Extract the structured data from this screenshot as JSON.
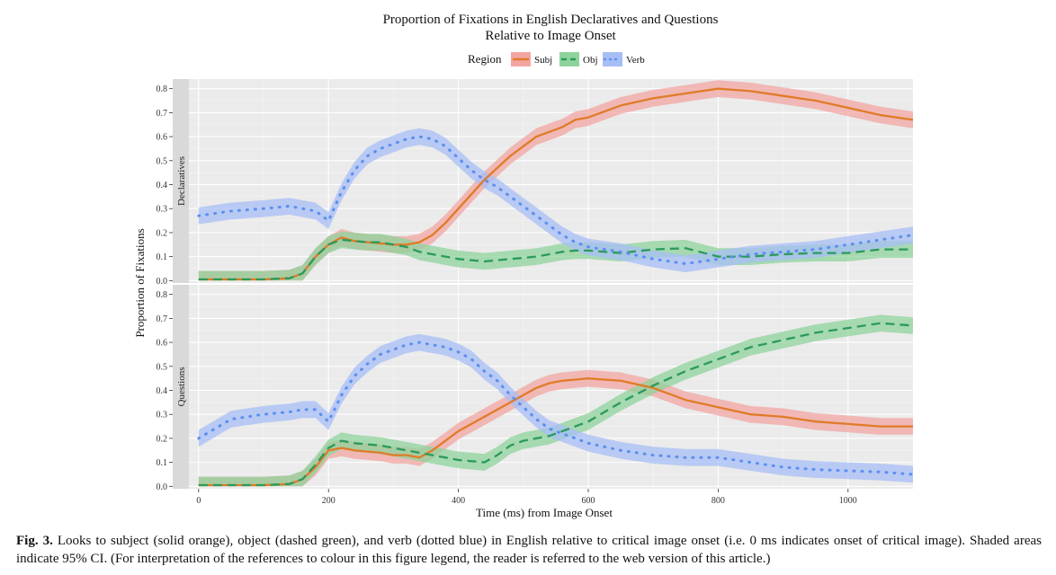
{
  "chart_data": {
    "type": "line",
    "title": "Proportion of Fixations in English Declaratives and Questions",
    "subtitle": "Relative to Image Onset",
    "xlabel": "Time (ms) from Image Onset",
    "ylabel": "Proportion of Fixations",
    "legend": {
      "title": "Region",
      "position": "top",
      "entries": [
        "Subj",
        "Obj",
        "Verb"
      ]
    },
    "xlim": [
      -15,
      1100
    ],
    "ylim": [
      -0.01,
      0.84
    ],
    "x_ticks": [
      0,
      200,
      400,
      600,
      800,
      1000
    ],
    "y_ticks": [
      0.0,
      0.1,
      0.2,
      0.3,
      0.4,
      0.5,
      0.6,
      0.7,
      0.8
    ],
    "grid": true,
    "confidence_band": 0.035,
    "colors": {
      "Subj": "#e07b28",
      "Obj": "#2a9a5a",
      "Verb": "#5b8ff0",
      "Subj_band": "#f2a6a2",
      "Obj_band": "#8fd39c",
      "Verb_band": "#a7bdf5"
    },
    "x": [
      0,
      50,
      100,
      140,
      160,
      180,
      200,
      220,
      240,
      260,
      280,
      300,
      320,
      340,
      360,
      380,
      400,
      420,
      440,
      460,
      480,
      500,
      520,
      540,
      560,
      580,
      600,
      650,
      700,
      750,
      800,
      850,
      900,
      950,
      1000,
      1050,
      1100
    ],
    "panels": [
      {
        "label": "Declaratives",
        "series": [
          {
            "name": "Subj",
            "values": [
              0.005,
              0.005,
              0.005,
              0.01,
              0.03,
              0.1,
              0.15,
              0.18,
              0.165,
              0.16,
              0.155,
              0.15,
              0.15,
              0.16,
              0.19,
              0.24,
              0.3,
              0.36,
              0.42,
              0.47,
              0.52,
              0.56,
              0.6,
              0.62,
              0.64,
              0.67,
              0.68,
              0.73,
              0.76,
              0.78,
              0.8,
              0.79,
              0.77,
              0.75,
              0.72,
              0.69,
              0.67
            ]
          },
          {
            "name": "Obj",
            "values": [
              0.005,
              0.005,
              0.005,
              0.01,
              0.03,
              0.1,
              0.15,
              0.17,
              0.165,
              0.16,
              0.16,
              0.15,
              0.14,
              0.12,
              0.11,
              0.1,
              0.09,
              0.085,
              0.08,
              0.085,
              0.09,
              0.095,
              0.1,
              0.11,
              0.12,
              0.125,
              0.125,
              0.115,
              0.13,
              0.135,
              0.1,
              0.1,
              0.11,
              0.115,
              0.115,
              0.13,
              0.13
            ]
          },
          {
            "name": "Verb",
            "values": [
              0.27,
              0.29,
              0.3,
              0.31,
              0.3,
              0.29,
              0.25,
              0.37,
              0.46,
              0.52,
              0.55,
              0.57,
              0.59,
              0.6,
              0.59,
              0.56,
              0.51,
              0.46,
              0.42,
              0.39,
              0.35,
              0.31,
              0.27,
              0.23,
              0.19,
              0.16,
              0.14,
              0.12,
              0.09,
              0.07,
              0.09,
              0.11,
              0.12,
              0.13,
              0.15,
              0.17,
              0.19
            ]
          }
        ]
      },
      {
        "label": "Questions",
        "series": [
          {
            "name": "Subj",
            "values": [
              0.005,
              0.005,
              0.005,
              0.01,
              0.03,
              0.08,
              0.15,
              0.16,
              0.15,
              0.145,
              0.14,
              0.13,
              0.13,
              0.12,
              0.15,
              0.19,
              0.23,
              0.26,
              0.29,
              0.32,
              0.35,
              0.38,
              0.41,
              0.43,
              0.44,
              0.445,
              0.45,
              0.44,
              0.41,
              0.36,
              0.33,
              0.3,
              0.29,
              0.27,
              0.26,
              0.25,
              0.25
            ]
          },
          {
            "name": "Obj",
            "values": [
              0.005,
              0.005,
              0.005,
              0.01,
              0.03,
              0.09,
              0.16,
              0.19,
              0.18,
              0.175,
              0.17,
              0.16,
              0.15,
              0.14,
              0.13,
              0.12,
              0.11,
              0.105,
              0.1,
              0.13,
              0.17,
              0.19,
              0.2,
              0.21,
              0.23,
              0.25,
              0.27,
              0.35,
              0.42,
              0.48,
              0.53,
              0.58,
              0.61,
              0.64,
              0.66,
              0.68,
              0.67
            ]
          },
          {
            "name": "Verb",
            "values": [
              0.2,
              0.28,
              0.3,
              0.31,
              0.32,
              0.32,
              0.27,
              0.38,
              0.46,
              0.51,
              0.55,
              0.57,
              0.59,
              0.6,
              0.59,
              0.58,
              0.56,
              0.53,
              0.48,
              0.44,
              0.38,
              0.33,
              0.28,
              0.24,
              0.22,
              0.2,
              0.18,
              0.15,
              0.13,
              0.12,
              0.12,
              0.1,
              0.08,
              0.07,
              0.065,
              0.06,
              0.05
            ]
          }
        ]
      }
    ]
  },
  "caption": {
    "label": "Fig. 3.",
    "text": " Looks to subject (solid orange), object (dashed green), and verb (dotted blue) in English relative to critical image onset (i.e. 0 ms indicates onset of critical image). Shaded areas indicate 95% CI. (For interpretation of the references to colour in this figure legend, the reader is referred to the web version of this article.)"
  }
}
